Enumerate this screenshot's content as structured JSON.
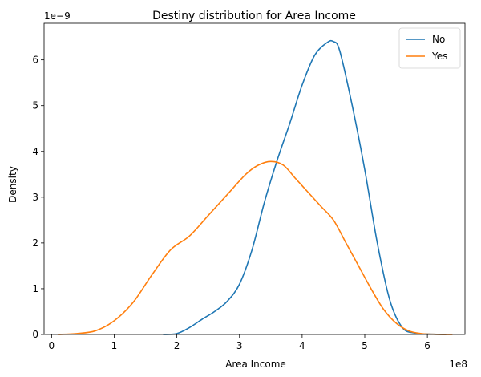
{
  "chart_data": {
    "type": "line",
    "title": "Destiny distribution for Area Income",
    "xlabel": "Area Income",
    "ylabel": "Density",
    "x_offset_label": "1e8",
    "y_offset_label": "1e−9",
    "xlim": [
      -0.12,
      6.6
    ],
    "ylim": [
      0,
      6.8
    ],
    "xticks": [
      0,
      1,
      2,
      3,
      4,
      5,
      6
    ],
    "yticks": [
      0,
      1,
      2,
      3,
      4,
      5,
      6
    ],
    "grid": false,
    "legend_position": "top-right",
    "series": [
      {
        "name": "No",
        "color": "#1f77b4",
        "x": [
          1.78,
          2.0,
          2.2,
          2.4,
          2.6,
          2.8,
          3.0,
          3.2,
          3.4,
          3.6,
          3.8,
          4.0,
          4.2,
          4.4,
          4.5,
          4.6,
          4.8,
          5.0,
          5.2,
          5.4,
          5.6,
          5.8,
          6.0,
          6.3
        ],
        "y": [
          0.0,
          0.02,
          0.15,
          0.33,
          0.5,
          0.72,
          1.1,
          1.85,
          2.9,
          3.8,
          4.6,
          5.45,
          6.1,
          6.38,
          6.4,
          6.2,
          5.0,
          3.6,
          2.0,
          0.75,
          0.15,
          0.03,
          0.01,
          0.0
        ]
      },
      {
        "name": "Yes",
        "color": "#ff7f0e",
        "x": [
          0.1,
          0.4,
          0.7,
          1.0,
          1.3,
          1.6,
          1.9,
          2.2,
          2.5,
          2.8,
          3.1,
          3.3,
          3.5,
          3.7,
          3.9,
          4.1,
          4.3,
          4.5,
          4.7,
          4.9,
          5.1,
          5.3,
          5.5,
          5.7,
          5.9,
          6.1,
          6.4
        ],
        "y": [
          0.0,
          0.02,
          0.08,
          0.3,
          0.7,
          1.3,
          1.85,
          2.15,
          2.6,
          3.05,
          3.5,
          3.7,
          3.78,
          3.7,
          3.4,
          3.1,
          2.8,
          2.5,
          2.0,
          1.5,
          1.0,
          0.55,
          0.25,
          0.08,
          0.02,
          0.005,
          0.0
        ]
      }
    ]
  }
}
